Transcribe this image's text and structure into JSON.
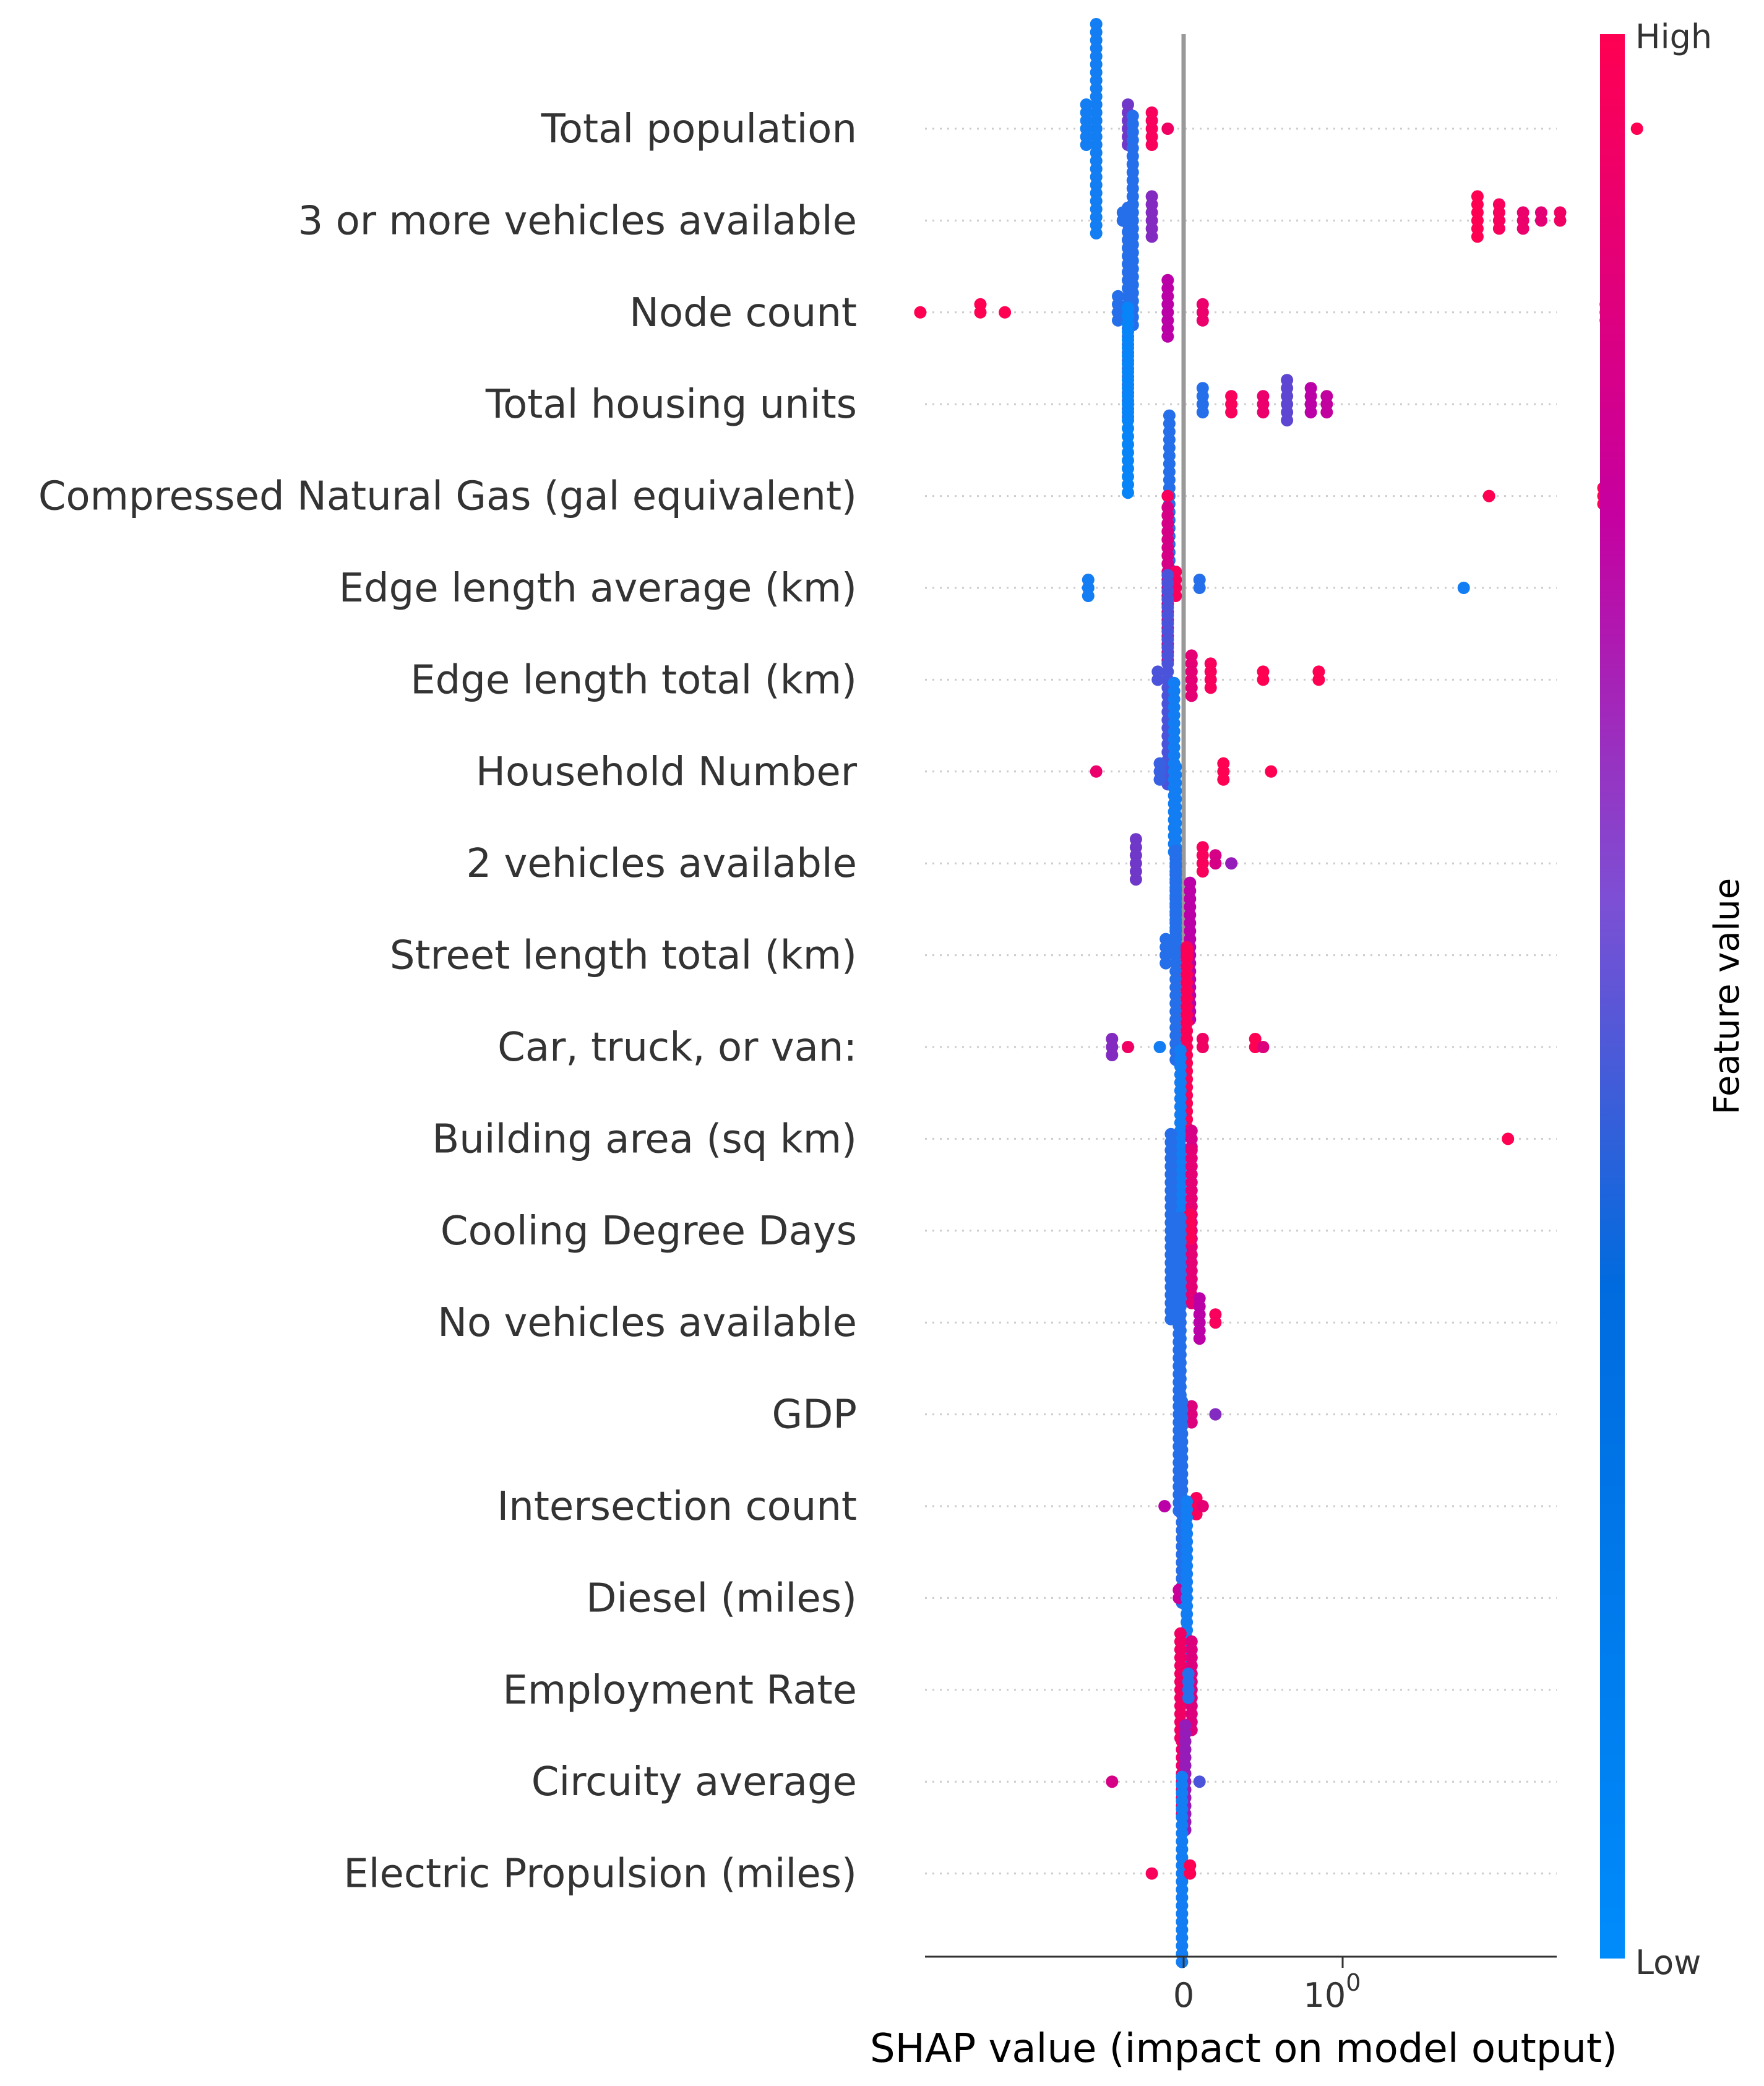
{
  "chart_data": {
    "type": "scatter",
    "subtype": "shap-beeswarm",
    "xlabel": "SHAP value (impact on model output)",
    "x_ticks": [
      {
        "value": 0,
        "label": "0"
      },
      {
        "value": 1,
        "label": "10",
        "exponent": "0"
      }
    ],
    "x_scale": "symlog",
    "xlim": [
      -5,
      100
    ],
    "colorbar": {
      "title": "Feature value",
      "high_label": "High",
      "low_label": "Low",
      "low_color": "#008bfb",
      "high_color": "#ff0052",
      "mid_color": "#bb00a8"
    },
    "zero_line_color": "#999999",
    "features": [
      {
        "name": "Total population",
        "points": [
          {
            "x": -0.55,
            "c": 0.05,
            "n": 34
          },
          {
            "x": -0.35,
            "c": 0.3,
            "n": 6
          },
          {
            "x": -0.2,
            "c": 0.95,
            "n": 5
          },
          {
            "x": -0.1,
            "c": 0.9,
            "n": 1
          },
          {
            "x": 35,
            "c": 1.0,
            "n": 2
          },
          {
            "x": 50,
            "c": 1.0,
            "n": 1
          }
        ]
      },
      {
        "name": "3 or more vehicles available",
        "points": [
          {
            "x": -0.32,
            "c": 0.1,
            "n": 30
          },
          {
            "x": -0.2,
            "c": 0.35,
            "n": 6
          },
          {
            "x": 6,
            "c": 1.0,
            "n": 6
          },
          {
            "x": 8,
            "c": 0.95,
            "n": 4
          },
          {
            "x": 11,
            "c": 0.85,
            "n": 3
          },
          {
            "x": 14,
            "c": 0.8,
            "n": 2
          },
          {
            "x": 18,
            "c": 0.9,
            "n": 2
          }
        ]
      },
      {
        "name": "Node count",
        "points": [
          {
            "x": -4,
            "c": 1.0,
            "n": 1
          },
          {
            "x": -1.8,
            "c": 1.0,
            "n": 2
          },
          {
            "x": -1.3,
            "c": 1.0,
            "n": 1
          },
          {
            "x": -0.35,
            "c": 0.1,
            "n": 32
          },
          {
            "x": -0.1,
            "c": 0.5,
            "n": 8
          },
          {
            "x": 0.12,
            "c": 0.85,
            "n": 3
          },
          {
            "x": 33,
            "c": 1.0,
            "n": 3
          }
        ]
      },
      {
        "name": "Total housing units",
        "points": [
          {
            "x": -0.35,
            "c": 0.02,
            "n": 24
          },
          {
            "x": 0.12,
            "c": 0.1,
            "n": 4
          },
          {
            "x": 0.3,
            "c": 0.95,
            "n": 3
          },
          {
            "x": 0.5,
            "c": 0.85,
            "n": 3
          },
          {
            "x": 0.65,
            "c": 0.25,
            "n": 6
          },
          {
            "x": 0.8,
            "c": 0.5,
            "n": 4
          },
          {
            "x": 0.9,
            "c": 0.55,
            "n": 3
          }
        ]
      },
      {
        "name": "Compressed Natural Gas (gal equivalent)",
        "points": [
          {
            "x": -0.09,
            "c": 0.1,
            "n": 20
          },
          {
            "x": -0.1,
            "c": 0.95,
            "n": 1
          },
          {
            "x": 7,
            "c": 1.0,
            "n": 1
          },
          {
            "x": 32,
            "c": 1.0,
            "n": 3
          }
        ]
      },
      {
        "name": "Edge length average (km)",
        "points": [
          {
            "x": -0.6,
            "c": 0.05,
            "n": 3
          },
          {
            "x": -0.1,
            "c": 0.7,
            "n": 20
          },
          {
            "x": -0.05,
            "c": 0.95,
            "n": 4
          },
          {
            "x": 0.1,
            "c": 0.1,
            "n": 2
          },
          {
            "x": 5,
            "c": 0.05,
            "n": 1
          }
        ]
      },
      {
        "name": "Edge length total (km)",
        "points": [
          {
            "x": -0.1,
            "c": 0.2,
            "n": 30
          },
          {
            "x": 0.05,
            "c": 0.8,
            "n": 6
          },
          {
            "x": 0.17,
            "c": 0.95,
            "n": 4
          },
          {
            "x": 0.5,
            "c": 1.0,
            "n": 2
          },
          {
            "x": 0.85,
            "c": 1.0,
            "n": 2
          }
        ]
      },
      {
        "name": "Household Number",
        "points": [
          {
            "x": -0.55,
            "c": 0.85,
            "n": 1
          },
          {
            "x": -0.15,
            "c": 0.15,
            "n": 3
          },
          {
            "x": -0.06,
            "c": 0.05,
            "n": 22
          },
          {
            "x": 0.25,
            "c": 1.0,
            "n": 3
          },
          {
            "x": 0.55,
            "c": 1.0,
            "n": 1
          }
        ]
      },
      {
        "name": "2 vehicles available",
        "points": [
          {
            "x": -0.3,
            "c": 0.3,
            "n": 6
          },
          {
            "x": -0.05,
            "c": 0.05,
            "n": 24
          },
          {
            "x": 0.12,
            "c": 0.95,
            "n": 4
          },
          {
            "x": 0.2,
            "c": 0.7,
            "n": 2
          },
          {
            "x": 0.3,
            "c": 0.4,
            "n": 1
          }
        ]
      },
      {
        "name": "Street length total (km)",
        "points": [
          {
            "x": -0.05,
            "c": 0.1,
            "n": 32
          },
          {
            "x": 0.04,
            "c": 0.5,
            "n": 18
          },
          {
            "x": 0.02,
            "c": 0.95,
            "n": 2
          }
        ]
      },
      {
        "name": "Car, truck, or van:",
        "points": [
          {
            "x": -0.45,
            "c": 0.35,
            "n": 3
          },
          {
            "x": -0.35,
            "c": 0.9,
            "n": 1
          },
          {
            "x": -0.15,
            "c": 0.05,
            "n": 1
          },
          {
            "x": 0.02,
            "c": 0.97,
            "n": 24
          },
          {
            "x": 0.12,
            "c": 0.9,
            "n": 2
          },
          {
            "x": 0.45,
            "c": 1.0,
            "n": 2
          },
          {
            "x": 0.5,
            "c": 0.75,
            "n": 1
          }
        ]
      },
      {
        "name": "Building area (sq km)",
        "points": [
          {
            "x": -0.02,
            "c": 0.05,
            "n": 22
          },
          {
            "x": 0.05,
            "c": 0.7,
            "n": 3
          },
          {
            "x": 9,
            "c": 1.0,
            "n": 1
          }
        ]
      },
      {
        "name": "Cooling Degree Days",
        "points": [
          {
            "x": -0.08,
            "c": 0.1,
            "n": 24
          },
          {
            "x": 0.05,
            "c": 0.8,
            "n": 20
          },
          {
            "x": 0.04,
            "c": 0.97,
            "n": 4
          }
        ]
      },
      {
        "name": "No vehicles available",
        "points": [
          {
            "x": -0.02,
            "c": 0.1,
            "n": 26
          },
          {
            "x": 0.1,
            "c": 0.5,
            "n": 6
          },
          {
            "x": 0.2,
            "c": 0.95,
            "n": 2
          }
        ]
      },
      {
        "name": "GDP",
        "points": [
          {
            "x": -0.03,
            "c": 0.1,
            "n": 26
          },
          {
            "x": 0.05,
            "c": 0.75,
            "n": 3
          },
          {
            "x": 0.2,
            "c": 0.35,
            "n": 1
          }
        ]
      },
      {
        "name": "Intersection count",
        "points": [
          {
            "x": -0.12,
            "c": 0.5,
            "n": 1
          },
          {
            "x": -0.01,
            "c": 0.1,
            "n": 26
          },
          {
            "x": 0.08,
            "c": 0.95,
            "n": 3
          },
          {
            "x": 0.12,
            "c": 0.8,
            "n": 1
          }
        ]
      },
      {
        "name": "Diesel (miles)",
        "points": [
          {
            "x": -0.03,
            "c": 0.6,
            "n": 2
          },
          {
            "x": 0.02,
            "c": 0.05,
            "n": 24
          }
        ]
      },
      {
        "name": "Employment Rate",
        "points": [
          {
            "x": -0.02,
            "c": 0.9,
            "n": 14
          },
          {
            "x": 0.05,
            "c": 0.75,
            "n": 12
          },
          {
            "x": 0.03,
            "c": 0.1,
            "n": 4
          }
        ]
      },
      {
        "name": "Circuity average",
        "points": [
          {
            "x": -0.45,
            "c": 0.7,
            "n": 1
          },
          {
            "x": -0.01,
            "c": 0.85,
            "n": 10
          },
          {
            "x": 0.01,
            "c": 0.4,
            "n": 14
          },
          {
            "x": 0.1,
            "c": 0.2,
            "n": 1
          }
        ]
      },
      {
        "name": "Electric Propulsion (miles)",
        "points": [
          {
            "x": -0.2,
            "c": 0.95,
            "n": 1
          },
          {
            "x": -0.01,
            "c": 0.05,
            "n": 24
          },
          {
            "x": 0.04,
            "c": 1.0,
            "n": 2
          }
        ]
      }
    ]
  }
}
